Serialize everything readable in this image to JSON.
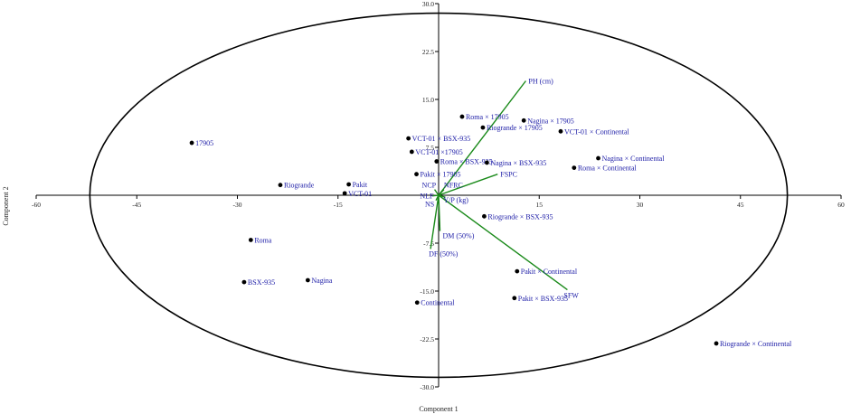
{
  "chart_data": {
    "type": "scatter",
    "xlabel": "Component 1",
    "ylabel": "Component 2",
    "xlim": [
      -60,
      60
    ],
    "ylim": [
      -30,
      30
    ],
    "xticks": [
      -60,
      -45,
      -30,
      -15,
      15,
      30,
      45,
      60
    ],
    "yticks": [
      30.0,
      22.5,
      15.0,
      7.5,
      -7.5,
      -15.0,
      -22.5,
      -30.0
    ],
    "xtick_labels": [
      "-60",
      "-45",
      "-30",
      "-15",
      "15",
      "30",
      "45",
      "60"
    ],
    "ytick_labels": [
      "30.0",
      "22.5",
      "15.0",
      "7.5",
      "-7.5",
      "-15.0",
      "-22.5",
      "-30.0"
    ],
    "ellipse": {
      "rx": 52,
      "ry": 28.5
    },
    "colors": {
      "point": "#000000",
      "label": "#1a1aa6",
      "vector": "#1a8a1a",
      "axis": "#000000"
    },
    "points": [
      {
        "label": "17905",
        "x": -36.8,
        "y": 8.2
      },
      {
        "label": "Riogrande",
        "x": -23.6,
        "y": 1.6
      },
      {
        "label": "Pakit",
        "x": -13.4,
        "y": 1.7
      },
      {
        "label": "VCT-01",
        "x": -14.0,
        "y": 0.3
      },
      {
        "label": "Roma",
        "x": -28.0,
        "y": -7.0
      },
      {
        "label": "BSX-935",
        "x": -29.0,
        "y": -13.6
      },
      {
        "label": "Nagina",
        "x": -19.5,
        "y": -13.3
      },
      {
        "label": "Continental",
        "x": -3.2,
        "y": -16.8
      },
      {
        "label": "Roma × 17905",
        "x": 3.5,
        "y": 12.3
      },
      {
        "label": "Riogrande × 17905",
        "x": 6.6,
        "y": 10.6
      },
      {
        "label": "Nagina × 17905",
        "x": 12.7,
        "y": 11.7
      },
      {
        "label": "VCT-01 × BSX-935",
        "x": -4.5,
        "y": 8.9
      },
      {
        "label": "VCT-01 × Continental",
        "x": 18.2,
        "y": 10.0
      },
      {
        "label": "VCT-01 ×17905",
        "x": -4.0,
        "y": 6.8
      },
      {
        "label": "Roma × BSX-935",
        "x": -0.3,
        "y": 5.3
      },
      {
        "label": "Nagina × BSX-935",
        "x": 7.2,
        "y": 5.1
      },
      {
        "label": "Nagina × Continental",
        "x": 23.8,
        "y": 5.8
      },
      {
        "label": "Roma × Continental",
        "x": 20.2,
        "y": 4.3
      },
      {
        "label": "Pakit × 17905",
        "x": -3.3,
        "y": 3.3
      },
      {
        "label": "Riogrande × BSX-935",
        "x": 6.8,
        "y": -3.3
      },
      {
        "label": "Pakit × Continental",
        "x": 11.7,
        "y": -11.9
      },
      {
        "label": "Pakit × BSX-935",
        "x": 11.3,
        "y": -16.1
      },
      {
        "label": "Riogrande × Continental",
        "x": 41.4,
        "y": -23.2
      }
    ],
    "vectors": [
      {
        "label": "PH (cm)",
        "x": 13.0,
        "y": 17.9
      },
      {
        "label": "FSPC",
        "x": 8.8,
        "y": 3.3
      },
      {
        "label": "SFW",
        "x": 19.2,
        "y": -14.8
      },
      {
        "label": "DF (50%)",
        "x": -1.2,
        "y": -8.4
      },
      {
        "label": "DM (50%)",
        "x": 0.2,
        "y": -5.6
      },
      {
        "label": "NCP",
        "x": -0.6,
        "y": 0.9
      },
      {
        "label": "NFRC",
        "x": 0.8,
        "y": 0.9
      },
      {
        "label": "NLF",
        "x": -0.9,
        "y": -0.1
      },
      {
        "label": "Y/P (kg)",
        "x": 1.0,
        "y": -0.3
      },
      {
        "label": "NS",
        "x": -0.4,
        "y": -0.8
      }
    ]
  }
}
